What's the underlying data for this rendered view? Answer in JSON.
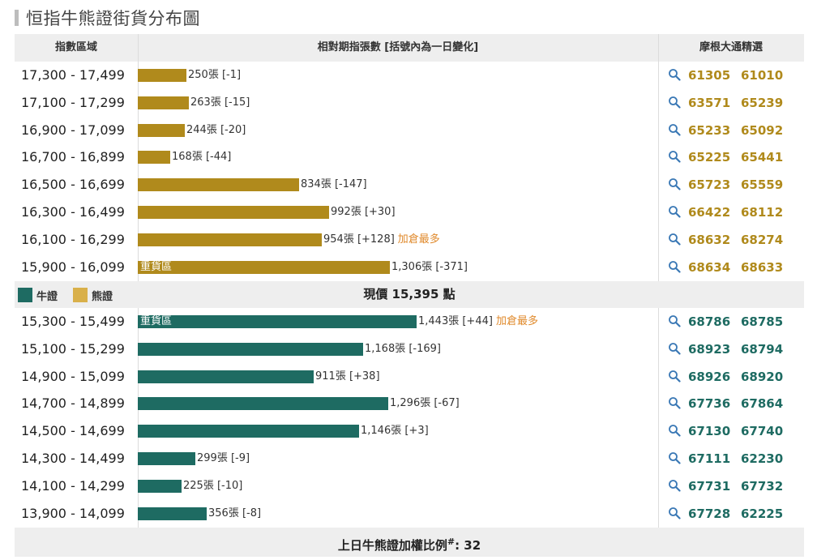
{
  "title": "恒指牛熊證街貨分布圖",
  "header": {
    "col_range": "指數區域",
    "col_bar": "相對期指張數 [括號內為一日變化]",
    "col_picks": "摩根大通精選"
  },
  "legend": {
    "bull": "牛證",
    "bear": "熊證"
  },
  "price_label": "現價 15,395 點",
  "footer": {
    "label": "上日牛熊證加權比例",
    "mark": "#",
    "value": ": 32"
  },
  "colors": {
    "bear": "#b08a1c",
    "bull": "#1e6b62",
    "note": "#e08a2c",
    "header_bg": "#eeeeee"
  },
  "icons": {
    "search": "search-icon"
  },
  "chart_data": {
    "type": "bar",
    "orientation": "horizontal",
    "title": "恒指牛熊證街貨分布圖",
    "current_price": "現價 15,395 點",
    "max_value": 1443,
    "series": [
      {
        "name": "熊證",
        "rows": [
          {
            "range": "17,300 - 17,499",
            "value": 250,
            "label": "250張 [-1]",
            "note": "",
            "inside": "",
            "codes": [
              "61305",
              "61010"
            ]
          },
          {
            "range": "17,100 - 17,299",
            "value": 263,
            "label": "263張 [-15]",
            "note": "",
            "inside": "",
            "codes": [
              "63571",
              "65239"
            ]
          },
          {
            "range": "16,900 - 17,099",
            "value": 244,
            "label": "244張 [-20]",
            "note": "",
            "inside": "",
            "codes": [
              "65233",
              "65092"
            ]
          },
          {
            "range": "16,700 - 16,899",
            "value": 168,
            "label": "168張 [-44]",
            "note": "",
            "inside": "",
            "codes": [
              "65225",
              "65441"
            ]
          },
          {
            "range": "16,500 - 16,699",
            "value": 834,
            "label": "834張 [-147]",
            "note": "",
            "inside": "",
            "codes": [
              "65723",
              "65559"
            ]
          },
          {
            "range": "16,300 - 16,499",
            "value": 992,
            "label": "992張 [+30]",
            "note": "",
            "inside": "",
            "codes": [
              "66422",
              "68112"
            ]
          },
          {
            "range": "16,100 - 16,299",
            "value": 954,
            "label": "954張 [+128]",
            "note": "加倉最多",
            "inside": "",
            "codes": [
              "68632",
              "68274"
            ]
          },
          {
            "range": "15,900 - 16,099",
            "value": 1306,
            "label": "1,306張 [-371]",
            "note": "",
            "inside": "重貨區",
            "codes": [
              "68634",
              "68633"
            ]
          }
        ]
      },
      {
        "name": "牛證",
        "rows": [
          {
            "range": "15,300 - 15,499",
            "value": 1443,
            "label": "1,443張 [+44]",
            "note": "加倉最多",
            "inside": "重貨區",
            "codes": [
              "68786",
              "68785"
            ]
          },
          {
            "range": "15,100 - 15,299",
            "value": 1168,
            "label": "1,168張 [-169]",
            "note": "",
            "inside": "",
            "codes": [
              "68923",
              "68794"
            ]
          },
          {
            "range": "14,900 - 15,099",
            "value": 911,
            "label": "911張 [+38]",
            "note": "",
            "inside": "",
            "codes": [
              "68926",
              "68920"
            ]
          },
          {
            "range": "14,700 - 14,899",
            "value": 1296,
            "label": "1,296張 [-67]",
            "note": "",
            "inside": "",
            "codes": [
              "67736",
              "67864"
            ]
          },
          {
            "range": "14,500 - 14,699",
            "value": 1146,
            "label": "1,146張 [+3]",
            "note": "",
            "inside": "",
            "codes": [
              "67130",
              "67740"
            ]
          },
          {
            "range": "14,300 - 14,499",
            "value": 299,
            "label": "299張 [-9]",
            "note": "",
            "inside": "",
            "codes": [
              "67111",
              "62230"
            ]
          },
          {
            "range": "14,100 - 14,299",
            "value": 225,
            "label": "225張 [-10]",
            "note": "",
            "inside": "",
            "codes": [
              "67731",
              "67732"
            ]
          },
          {
            "range": "13,900 - 14,099",
            "value": 356,
            "label": "356張 [-8]",
            "note": "",
            "inside": "",
            "codes": [
              "67728",
              "62225"
            ]
          }
        ]
      }
    ]
  }
}
